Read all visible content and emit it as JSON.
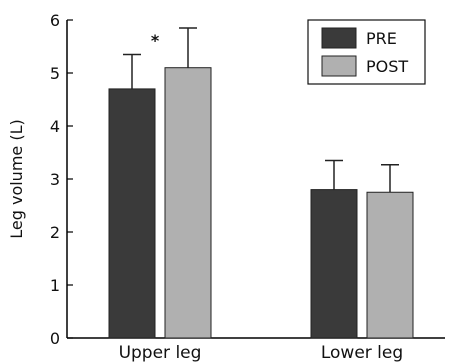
{
  "chart_data": {
    "type": "bar",
    "categories": [
      "Upper leg",
      "Lower leg"
    ],
    "series": [
      {
        "name": "PRE",
        "values": [
          4.7,
          2.8
        ],
        "errors": [
          0.65,
          0.55
        ],
        "color": "#3a3a3a"
      },
      {
        "name": "POST",
        "values": [
          5.1,
          2.75
        ],
        "errors": [
          0.75,
          0.52
        ],
        "color": "#b0b0b0"
      }
    ],
    "ylabel": "Leg volume (L)",
    "xlabel": "",
    "ylim": [
      0,
      6
    ],
    "yticks": [
      "0",
      "1",
      "2",
      "3",
      "4",
      "5",
      "6"
    ],
    "legend_position": "top-right",
    "grid": false,
    "annotations": [
      {
        "text": "*",
        "category": "Upper leg"
      }
    ]
  }
}
